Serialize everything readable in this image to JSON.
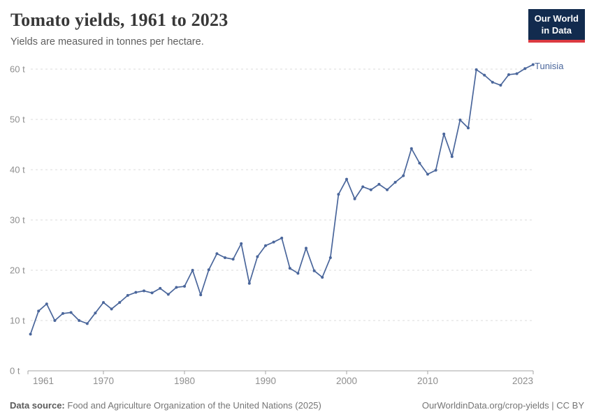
{
  "header": {
    "title": "Tomato yields, 1961 to 2023",
    "subtitle": "Yields are measured in tonnes per hectare."
  },
  "logo": {
    "line1": "Our World",
    "line2": "in Data"
  },
  "chart_data": {
    "type": "line",
    "title": "Tomato yields, 1961 to 2023",
    "ylabel": "tonnes per hectare",
    "xlabel": "",
    "xlim": [
      1961,
      2023
    ],
    "ylim": [
      0,
      60
    ],
    "grid": "horizontal-dashed",
    "legend_position": "end-of-line-label",
    "line_color": "#4A669B",
    "x": [
      1961,
      1962,
      1963,
      1964,
      1965,
      1966,
      1967,
      1968,
      1969,
      1970,
      1971,
      1972,
      1973,
      1974,
      1975,
      1976,
      1977,
      1978,
      1979,
      1980,
      1981,
      1982,
      1983,
      1984,
      1985,
      1986,
      1987,
      1988,
      1989,
      1990,
      1991,
      1992,
      1993,
      1994,
      1995,
      1996,
      1997,
      1998,
      1999,
      2000,
      2001,
      2002,
      2003,
      2004,
      2005,
      2006,
      2007,
      2008,
      2009,
      2010,
      2011,
      2012,
      2013,
      2014,
      2015,
      2016,
      2017,
      2018,
      2019,
      2020,
      2021,
      2022,
      2023
    ],
    "series": [
      {
        "name": "Tunisia",
        "values": [
          7.3,
          11.9,
          13.3,
          10.0,
          11.4,
          11.6,
          10.0,
          9.4,
          11.5,
          13.6,
          12.3,
          13.6,
          15.0,
          15.6,
          15.9,
          15.5,
          16.4,
          15.2,
          16.6,
          16.8,
          20.0,
          15.1,
          20.1,
          23.3,
          22.5,
          22.2,
          25.3,
          17.4,
          22.7,
          24.9,
          25.6,
          26.4,
          20.4,
          19.4,
          24.4,
          19.9,
          18.6,
          22.5,
          35.1,
          38.1,
          34.2,
          36.6,
          36.0,
          37.1,
          36.0,
          37.5,
          38.8,
          44.2,
          41.3,
          39.1,
          39.9,
          47.1,
          42.6,
          49.9,
          48.3,
          59.9,
          58.8,
          57.4,
          56.8,
          58.9,
          59.1,
          60.1,
          60.9
        ]
      }
    ],
    "yticks": [
      {
        "value": 0,
        "label": "0 t"
      },
      {
        "value": 10,
        "label": "10 t"
      },
      {
        "value": 20,
        "label": "20 t"
      },
      {
        "value": 30,
        "label": "30 t"
      },
      {
        "value": 40,
        "label": "40 t"
      },
      {
        "value": 50,
        "label": "50 t"
      },
      {
        "value": 60,
        "label": "60 t"
      }
    ],
    "xticks": [
      {
        "value": 1961,
        "label": "1961"
      },
      {
        "value": 1970,
        "label": "1970"
      },
      {
        "value": 1980,
        "label": "1980"
      },
      {
        "value": 1990,
        "label": "1990"
      },
      {
        "value": 2000,
        "label": "2000"
      },
      {
        "value": 2010,
        "label": "2010"
      },
      {
        "value": 2023,
        "label": "2023"
      }
    ]
  },
  "footer": {
    "source_label": "Data source:",
    "source_text": "Food and Agriculture Organization of the United Nations (2025)",
    "link_text": "OurWorldinData.org/crop-yields | CC BY"
  },
  "colors": {
    "accent": "#4A669B",
    "grid": "#DBDBDB",
    "axis": "#A5A5A5",
    "tick_text": "#8E8E8E",
    "logo_bg": "#122B4E",
    "logo_red": "#DC3A41"
  }
}
